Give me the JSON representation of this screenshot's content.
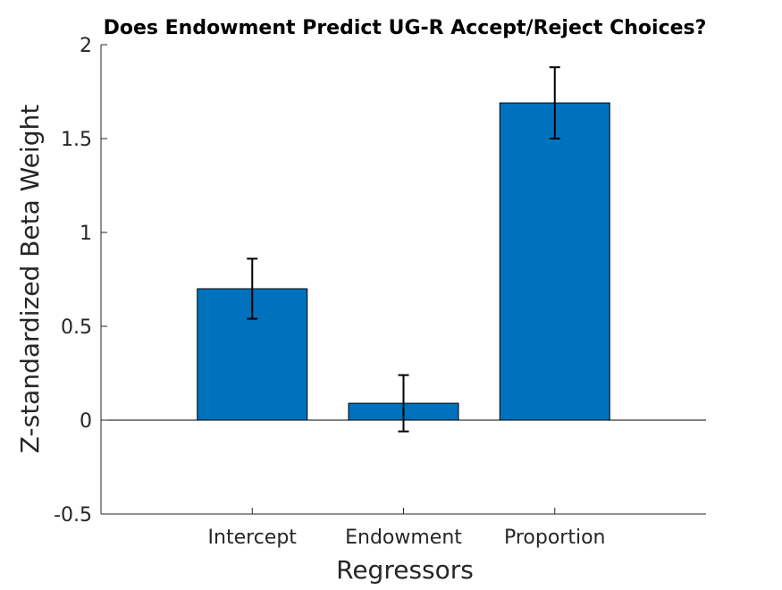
{
  "chart_data": {
    "type": "bar",
    "title": "Does Endowment Predict UG-R Accept/Reject Choices?",
    "xlabel": "Regressors",
    "ylabel": "Z-standardized Beta Weight",
    "categories": [
      "Intercept",
      "Endowment",
      "Proportion"
    ],
    "values": [
      0.7,
      0.09,
      1.69
    ],
    "error_bars": [
      {
        "low": 0.54,
        "high": 0.86
      },
      {
        "low": -0.06,
        "high": 0.24
      },
      {
        "low": 1.5,
        "high": 1.88
      }
    ],
    "ylim": [
      -0.5,
      2
    ],
    "yticks": [
      -0.5,
      0,
      0.5,
      1,
      1.5,
      2
    ],
    "ytick_labels": [
      "-0.5",
      "0",
      "0.5",
      "1",
      "1.5",
      "2"
    ],
    "bar_color": "#0072bd",
    "grid": false,
    "legend": "none"
  }
}
